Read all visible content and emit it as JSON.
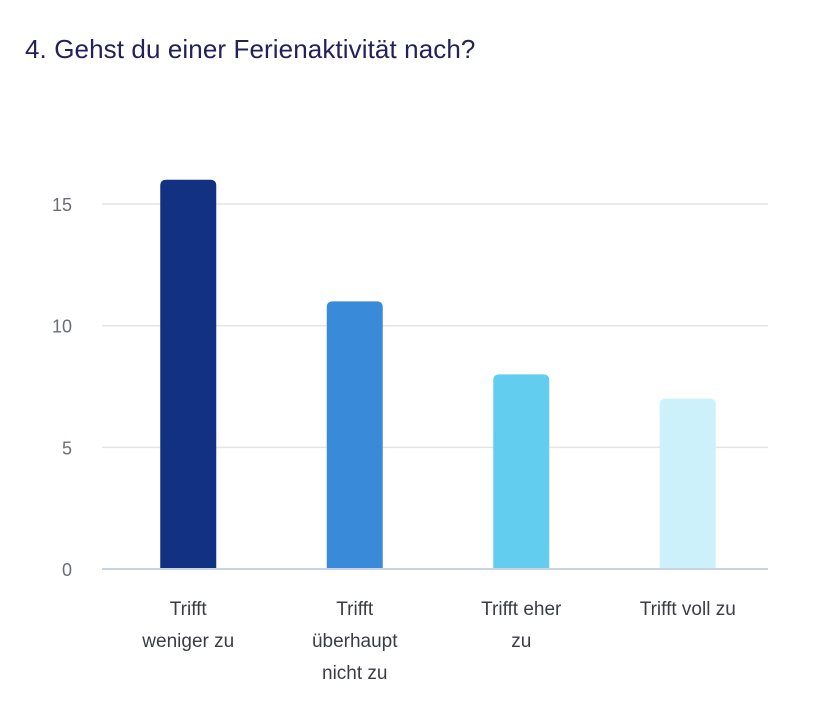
{
  "title": "4. Gehst du einer Ferienaktivität nach?",
  "chart_data": {
    "type": "bar",
    "title": "4. Gehst du einer Ferienaktivität nach?",
    "xlabel": "",
    "ylabel": "",
    "categories": [
      "Trifft weniger zu",
      "Trifft überhaupt nicht zu",
      "Trifft eher zu",
      "Trifft voll zu"
    ],
    "category_lines": [
      [
        "Trifft",
        "weniger zu"
      ],
      [
        "Trifft",
        "überhaupt",
        "nicht zu"
      ],
      [
        "Trifft eher",
        "zu"
      ],
      [
        "Trifft voll zu"
      ]
    ],
    "values": [
      16,
      11,
      8,
      7
    ],
    "colors": [
      "#123182",
      "#398bd9",
      "#62cdef",
      "#cdf1fa"
    ],
    "ylim": [
      0,
      17
    ],
    "yticks": [
      0,
      5,
      10,
      15
    ],
    "grid": true,
    "legend": "none"
  }
}
